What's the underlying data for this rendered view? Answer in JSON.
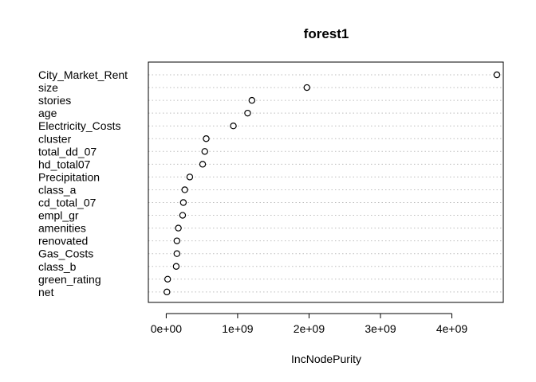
{
  "chart_data": {
    "type": "scatter",
    "title": "forest1",
    "xlabel": "IncNodePurity",
    "ylabel": "",
    "xlim": [
      -250000000,
      4720000000
    ],
    "xticks": [
      0,
      1000000000,
      2000000000,
      3000000000,
      4000000000
    ],
    "xtick_labels": [
      "0e+00",
      "1e+09",
      "2e+09",
      "3e+09",
      "4e+09"
    ],
    "grid": "dotted horizontal guide per variable",
    "categories": [
      "City_Market_Rent",
      "size",
      "stories",
      "age",
      "Electricity_Costs",
      "cluster",
      "total_dd_07",
      "hd_total07",
      "Precipitation",
      "class_a",
      "cd_total_07",
      "empl_gr",
      "amenities",
      "renovated",
      "Gas_Costs",
      "class_b",
      "green_rating",
      "net"
    ],
    "values": [
      4630000000,
      1970000000,
      1200000000,
      1140000000,
      940000000,
      560000000,
      540000000,
      510000000,
      330000000,
      260000000,
      240000000,
      230000000,
      170000000,
      150000000,
      150000000,
      140000000,
      20000000,
      10000000
    ]
  }
}
